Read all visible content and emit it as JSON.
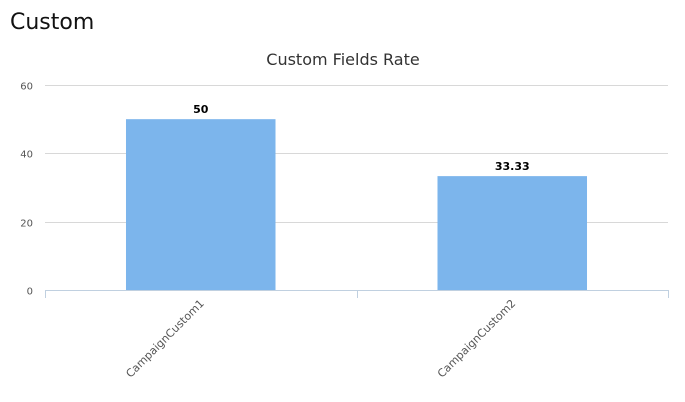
{
  "page": {
    "section_title": "Custom"
  },
  "chart_data": {
    "type": "bar",
    "title": "Custom Fields Rate",
    "xlabel": "",
    "ylabel": "",
    "categories": [
      "CampaignCustom1",
      "CampaignCustom2"
    ],
    "values": [
      50,
      33.33
    ],
    "data_labels": [
      "50",
      "33.33"
    ],
    "ylim": [
      0,
      60
    ],
    "yticks": [
      0,
      20,
      40,
      60
    ],
    "grid": true,
    "legend": "none",
    "bar_color": "#7cb5ec"
  }
}
